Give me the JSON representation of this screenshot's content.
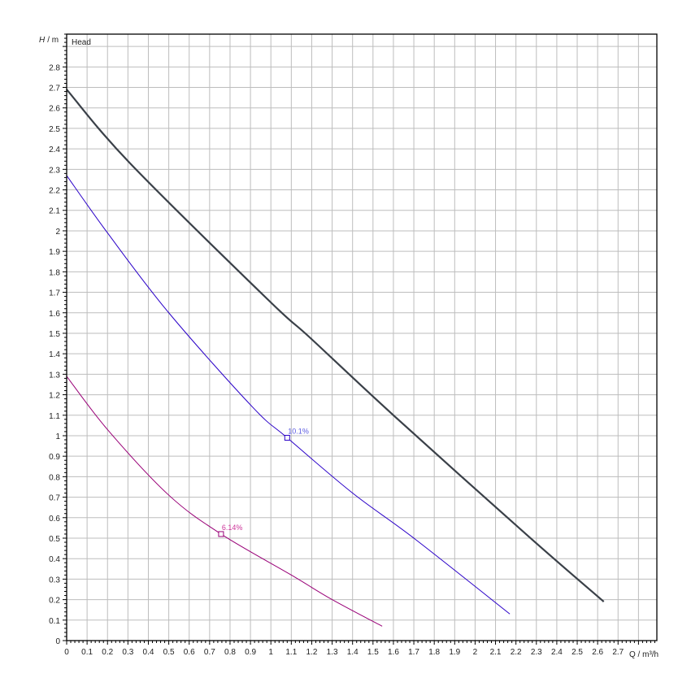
{
  "chart_data": {
    "type": "line",
    "title": "",
    "inner_label": "Head",
    "xlabel": "Q / m³/h",
    "ylabel_symbol": "H",
    "ylabel_unit": "/ m",
    "xlim": [
      0,
      2.89
    ],
    "ylim": [
      0,
      2.96
    ],
    "x_ticks": [
      "0",
      "0.1",
      "0.2",
      "0.3",
      "0.4",
      "0.5",
      "0.6",
      "0.7",
      "0.8",
      "0.9",
      "1",
      "1.1",
      "1.2",
      "1.3",
      "1.4",
      "1.5",
      "1.6",
      "1.7",
      "1.8",
      "1.9",
      "2",
      "2.1",
      "2.2",
      "2.3",
      "2.4",
      "2.5",
      "2.6",
      "2.7"
    ],
    "y_ticks": [
      "0",
      "0.1",
      "0.2",
      "0.3",
      "0.4",
      "0.5",
      "0.6",
      "0.7",
      "0.8",
      "0.9",
      "1",
      "1.1",
      "1.2",
      "1.3",
      "1.4",
      "1.5",
      "1.6",
      "1.7",
      "1.8",
      "1.9",
      "2",
      "2.1",
      "2.2",
      "2.3",
      "2.4",
      "2.5",
      "2.6",
      "2.7",
      "2.8"
    ],
    "grid": true,
    "series": [
      {
        "color": "#3a4048",
        "points": [
          [
            0,
            2.69
          ],
          [
            0.31,
            2.33
          ],
          [
            0.99,
            1.66
          ],
          [
            1.19,
            1.48
          ],
          [
            1.6,
            1.1
          ],
          [
            2.26,
            0.51
          ],
          [
            2.63,
            0.19
          ]
        ]
      },
      {
        "color": "#2a00c8",
        "points": [
          [
            0,
            2.27
          ],
          [
            0.2,
            1.99
          ],
          [
            0.5,
            1.6
          ],
          [
            0.91,
            1.14
          ],
          [
            1.08,
            0.99
          ],
          [
            1.4,
            0.72
          ],
          [
            1.7,
            0.5
          ],
          [
            2.17,
            0.13
          ]
        ],
        "marker": {
          "x": 1.08,
          "y": 0.99,
          "label": "10.1%",
          "label_color": "#5a5ae0"
        }
      },
      {
        "color": "#990077",
        "points": [
          [
            0,
            1.29
          ],
          [
            0.2,
            1.03
          ],
          [
            0.5,
            0.71
          ],
          [
            0.756,
            0.52
          ],
          [
            1.1,
            0.32
          ],
          [
            1.3,
            0.2
          ],
          [
            1.545,
            0.07
          ]
        ],
        "marker": {
          "x": 0.756,
          "y": 0.52,
          "label": "6.14%",
          "label_color": "#cc3399"
        }
      }
    ]
  }
}
